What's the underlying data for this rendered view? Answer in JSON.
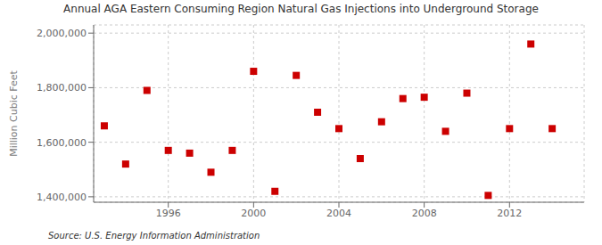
{
  "chart_data": {
    "type": "scatter",
    "title": "Annual AGA Eastern Consuming Region Natural Gas Injections into Underground Storage",
    "ylabel": "Million Cubic Feet",
    "annotations": [
      "Source: U.S. Energy Information Administration"
    ],
    "x": [
      1993,
      1994,
      1995,
      1996,
      1997,
      1998,
      1999,
      2000,
      2001,
      2002,
      2003,
      2004,
      2005,
      2006,
      2007,
      2008,
      2009,
      2010,
      2011,
      2012,
      2013,
      2014
    ],
    "values": [
      1660000,
      1520000,
      1790000,
      1570000,
      1560000,
      1490000,
      1570000,
      1860000,
      1420000,
      1845000,
      1710000,
      1650000,
      1540000,
      1675000,
      1760000,
      1765000,
      1640000,
      1780000,
      1405000,
      1650000,
      1960000,
      1650000
    ],
    "color": "#cc0000",
    "marker": "square",
    "xlim": [
      1992.5,
      2015.5
    ],
    "ylim": [
      1380000,
      2030000
    ],
    "xticks": [
      1996,
      2000,
      2004,
      2008,
      2012
    ],
    "yticks": [
      {
        "value": 1400000,
        "label": "1,400,000"
      },
      {
        "value": 1600000,
        "label": "1,600,000"
      },
      {
        "value": 1800000,
        "label": "1,800,000"
      },
      {
        "value": 2000000,
        "label": "2,000,000"
      }
    ],
    "grid": true
  }
}
